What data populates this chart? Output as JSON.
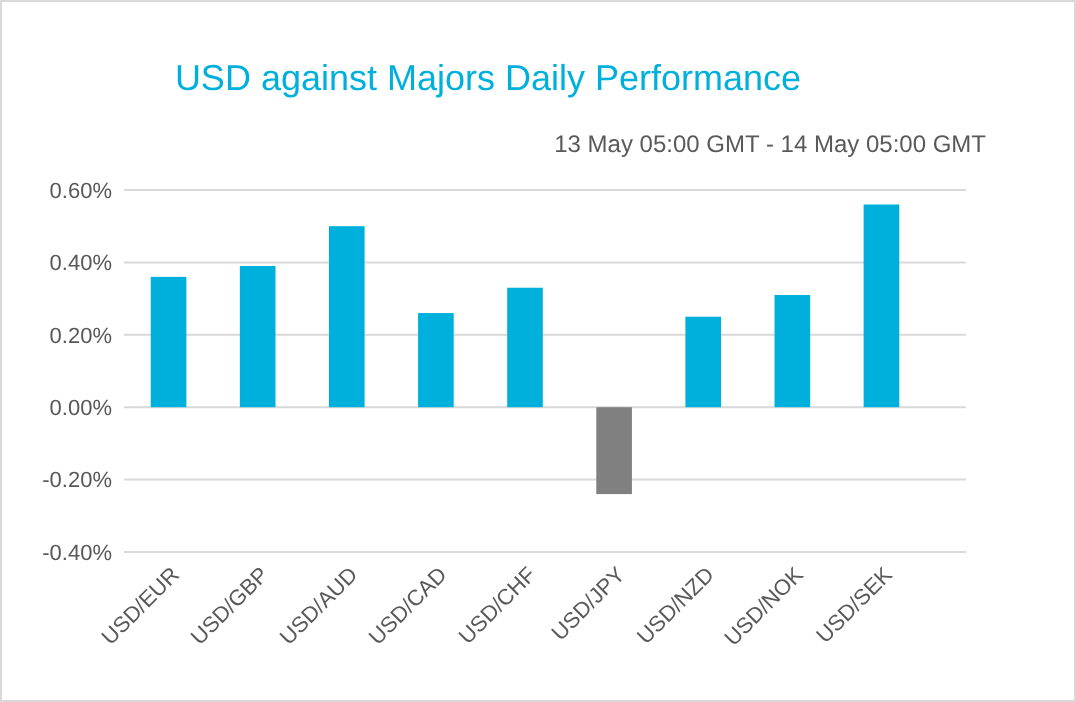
{
  "chart_data": {
    "type": "bar",
    "title": "USD against Majors Daily Performance",
    "subtitle": "13 May 05:00 GMT -  14 May  05:00 GMT",
    "categories": [
      "USD/EUR",
      "USD/GBP",
      "USD/AUD",
      "USD/CAD",
      "USD/CHF",
      "USD/JPY",
      "USD/NZD",
      "USD/NOK",
      "USD/SEK"
    ],
    "values": [
      0.36,
      0.39,
      0.5,
      0.26,
      0.33,
      -0.24,
      0.25,
      0.31,
      0.56
    ],
    "colors": [
      "#00b0dc",
      "#00b0dc",
      "#00b0dc",
      "#00b0dc",
      "#00b0dc",
      "#808080",
      "#00b0dc",
      "#00b0dc",
      "#00b0dc"
    ],
    "ylim": [
      -0.4,
      0.6
    ],
    "yticks": [
      {
        "value": -0.4,
        "label": "-0.40%"
      },
      {
        "value": -0.2,
        "label": "-0.20%"
      },
      {
        "value": 0,
        "label": "0.00%"
      },
      {
        "value": 0.2,
        "label": "0.20%"
      },
      {
        "value": 0.4,
        "label": "0.40%"
      },
      {
        "value": 0.6,
        "label": "0.60%"
      }
    ],
    "grid": "y"
  }
}
